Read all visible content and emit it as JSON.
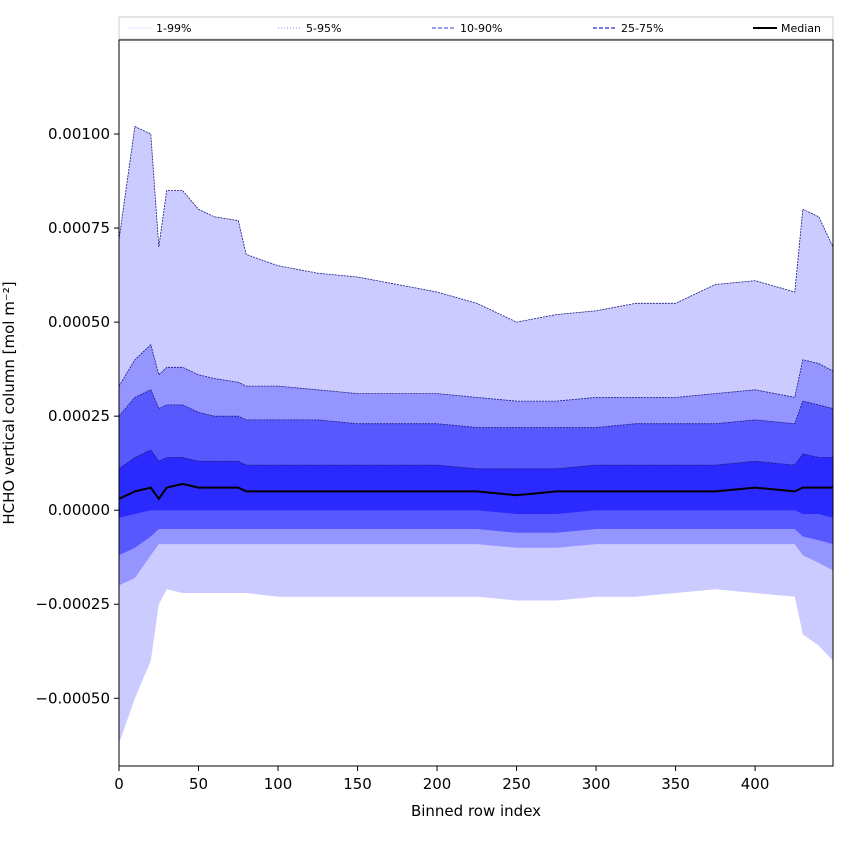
{
  "chart_data": {
    "type": "area",
    "xlabel": "Binned row index",
    "ylabel": "HCHO vertical column [mol m⁻²]",
    "xlim": [
      0,
      449
    ],
    "ylim": [
      -0.00068,
      0.00125
    ],
    "x_ticks": [
      0,
      50,
      100,
      150,
      200,
      250,
      300,
      350,
      400
    ],
    "x_tick_labels": [
      "0",
      "50",
      "100",
      "150",
      "200",
      "250",
      "300",
      "350",
      "400"
    ],
    "y_ticks": [
      -0.0005,
      -0.00025,
      0.0,
      0.00025,
      0.0005,
      0.00075,
      0.001
    ],
    "y_tick_labels": [
      "−0.00050",
      "−0.00025",
      "0.00000",
      "0.00025",
      "0.00050",
      "0.00075",
      "0.00100"
    ],
    "grid": false,
    "legend_position": "top",
    "legend": [
      {
        "label": "1-99%",
        "color": "#c8c8ff",
        "style": "thin"
      },
      {
        "label": "5-95%",
        "color": "#6a6ae6",
        "style": "dotted"
      },
      {
        "label": "10-90%",
        "color": "#5a5af0",
        "style": "dashed"
      },
      {
        "label": "25-75%",
        "color": "#2a2ae0",
        "style": "dashed"
      },
      {
        "label": "Median",
        "color": "#000000",
        "style": "solid"
      }
    ],
    "x": [
      0,
      10,
      20,
      25,
      30,
      40,
      50,
      60,
      75,
      80,
      100,
      125,
      150,
      175,
      200,
      225,
      250,
      275,
      300,
      325,
      350,
      375,
      400,
      425,
      430,
      440,
      449
    ],
    "series": [
      {
        "name": "1-99%",
        "color": "#cbcbff",
        "upper": [
          0.00072,
          0.00102,
          0.001,
          0.0007,
          0.00085,
          0.00085,
          0.0008,
          0.00078,
          0.00077,
          0.00068,
          0.00065,
          0.00063,
          0.00062,
          0.0006,
          0.00058,
          0.00055,
          0.0005,
          0.00052,
          0.00053,
          0.00055,
          0.00055,
          0.0006,
          0.00061,
          0.00058,
          0.0008,
          0.00078,
          0.0007
        ],
        "lower": [
          -0.00062,
          -0.0005,
          -0.0004,
          -0.00025,
          -0.00021,
          -0.00022,
          -0.00022,
          -0.00022,
          -0.00022,
          -0.00022,
          -0.00023,
          -0.00023,
          -0.00023,
          -0.00023,
          -0.00023,
          -0.00023,
          -0.00024,
          -0.00024,
          -0.00023,
          -0.00023,
          -0.00022,
          -0.00021,
          -0.00022,
          -0.00023,
          -0.00033,
          -0.00036,
          -0.0004
        ]
      },
      {
        "name": "5-95%",
        "color": "#9595ff",
        "upper": [
          0.00033,
          0.0004,
          0.00044,
          0.00036,
          0.00038,
          0.00038,
          0.00036,
          0.00035,
          0.00034,
          0.00033,
          0.00033,
          0.00032,
          0.00031,
          0.00031,
          0.00031,
          0.0003,
          0.00029,
          0.00029,
          0.0003,
          0.0003,
          0.0003,
          0.00031,
          0.00032,
          0.0003,
          0.0004,
          0.00039,
          0.00037
        ],
        "lower": [
          -0.0002,
          -0.00018,
          -0.00012,
          -9e-05,
          -9e-05,
          -9e-05,
          -9e-05,
          -9e-05,
          -9e-05,
          -9e-05,
          -9e-05,
          -9e-05,
          -9e-05,
          -9e-05,
          -9e-05,
          -9e-05,
          -0.0001,
          -0.0001,
          -9e-05,
          -9e-05,
          -9e-05,
          -9e-05,
          -9e-05,
          -9e-05,
          -0.00012,
          -0.00014,
          -0.00016
        ]
      },
      {
        "name": "10-90%",
        "color": "#5858ff",
        "upper": [
          0.00025,
          0.0003,
          0.00032,
          0.00027,
          0.00028,
          0.00028,
          0.00026,
          0.00025,
          0.00025,
          0.00024,
          0.00024,
          0.00024,
          0.00023,
          0.00023,
          0.00023,
          0.00022,
          0.00022,
          0.00022,
          0.00022,
          0.00023,
          0.00023,
          0.00023,
          0.00024,
          0.00023,
          0.00029,
          0.00028,
          0.00027
        ],
        "lower": [
          -0.00012,
          -0.0001,
          -7e-05,
          -5e-05,
          -5e-05,
          -5e-05,
          -5e-05,
          -5e-05,
          -5e-05,
          -5e-05,
          -5e-05,
          -5e-05,
          -5e-05,
          -5e-05,
          -5e-05,
          -5e-05,
          -6e-05,
          -6e-05,
          -5e-05,
          -5e-05,
          -5e-05,
          -5e-05,
          -5e-05,
          -5e-05,
          -7e-05,
          -8e-05,
          -9e-05
        ]
      },
      {
        "name": "25-75%",
        "color": "#2a2aff",
        "upper": [
          0.00011,
          0.00014,
          0.00016,
          0.00013,
          0.00014,
          0.00014,
          0.00013,
          0.00013,
          0.00013,
          0.00012,
          0.00012,
          0.00012,
          0.00012,
          0.00012,
          0.00012,
          0.00011,
          0.00011,
          0.00011,
          0.00012,
          0.00012,
          0.00012,
          0.00012,
          0.00013,
          0.00012,
          0.00015,
          0.00014,
          0.00014
        ],
        "lower": [
          -2e-05,
          -1e-05,
          0.0,
          0.0,
          0.0,
          0.0,
          0.0,
          0.0,
          0.0,
          0.0,
          0.0,
          0.0,
          0.0,
          0.0,
          0.0,
          0.0,
          -1e-05,
          -1e-05,
          0.0,
          0.0,
          0.0,
          0.0,
          0.0,
          0.0,
          -1e-05,
          -1e-05,
          -2e-05
        ]
      },
      {
        "name": "Median",
        "color": "#000000",
        "values": [
          3e-05,
          5e-05,
          6e-05,
          3e-05,
          6e-05,
          7e-05,
          6e-05,
          6e-05,
          6e-05,
          5e-05,
          5e-05,
          5e-05,
          5e-05,
          5e-05,
          5e-05,
          5e-05,
          4e-05,
          5e-05,
          5e-05,
          5e-05,
          5e-05,
          5e-05,
          6e-05,
          5e-05,
          6e-05,
          6e-05,
          6e-05
        ]
      }
    ]
  }
}
